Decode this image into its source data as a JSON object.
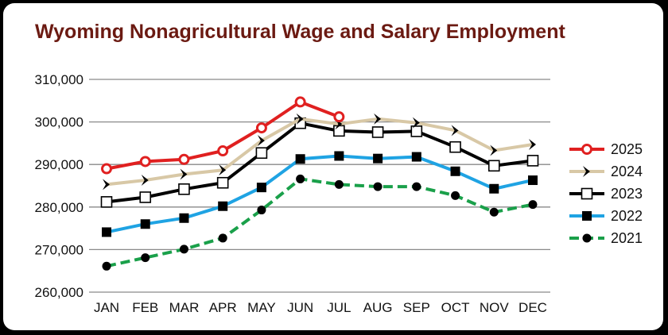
{
  "chart_data": {
    "type": "line",
    "title": "Wyoming Nonagricultural Wage and Salary Employment",
    "xlabel": "",
    "ylabel": "",
    "categories": [
      "JAN",
      "FEB",
      "MAR",
      "APR",
      "MAY",
      "JUN",
      "JUL",
      "AUG",
      "SEP",
      "OCT",
      "NOV",
      "DEC"
    ],
    "ylim": [
      260000,
      310000
    ],
    "yticks": [
      260000,
      270000,
      280000,
      290000,
      300000,
      310000
    ],
    "ytick_labels": [
      "260,000",
      "270,000",
      "280,000",
      "290,000",
      "300,000",
      "310,000"
    ],
    "grid": true,
    "legend_position": "right",
    "series": [
      {
        "name": "2025",
        "color": "#e02020",
        "marker": "open-circle",
        "values": [
          289000,
          290700,
          291200,
          293200,
          298600,
          304700,
          301200,
          null,
          null,
          null,
          null,
          null
        ]
      },
      {
        "name": "2024",
        "color": "#d8c8a6",
        "marker": "chevron",
        "values": [
          285300,
          286300,
          287700,
          288700,
          295600,
          300700,
          299500,
          300700,
          299800,
          298000,
          293300,
          294700
        ]
      },
      {
        "name": "2023",
        "color": "#000000",
        "marker": "open-square",
        "values": [
          281200,
          282300,
          284200,
          285700,
          292700,
          299700,
          297900,
          297600,
          297800,
          294100,
          289700,
          290900
        ]
      },
      {
        "name": "2022",
        "color": "#1fa3e3",
        "marker": "filled-square",
        "values": [
          274100,
          276000,
          277400,
          280200,
          284600,
          291300,
          292000,
          291400,
          291800,
          288400,
          284300,
          286300
        ]
      },
      {
        "name": "2021",
        "color": "#1aa04a",
        "marker": "filled-circle",
        "values": [
          266100,
          268100,
          270100,
          272700,
          279300,
          286600,
          285300,
          284800,
          284800,
          282700,
          278800,
          280600
        ]
      }
    ]
  }
}
